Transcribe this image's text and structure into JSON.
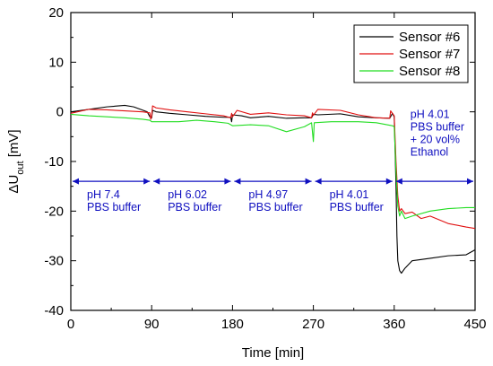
{
  "chart_data": {
    "type": "line",
    "xlabel": "Time [min]",
    "ylabel_main": "ΔU",
    "ylabel_sub": "out",
    "ylabel_unit": " [mV]",
    "xlim": [
      0,
      450
    ],
    "ylim": [
      -40,
      20
    ],
    "x_ticks": [
      0,
      90,
      180,
      270,
      360,
      450
    ],
    "x_tick_labels": [
      "0",
      "90",
      "180",
      "270",
      "360",
      "450"
    ],
    "y_ticks": [
      20,
      10,
      0,
      -10,
      -20,
      -30,
      -40
    ],
    "y_tick_labels": [
      "20",
      "10",
      "0",
      "-10",
      "-20",
      "-30",
      "-40"
    ],
    "grid": false,
    "legend_position": "top-right",
    "series": [
      {
        "name": "Sensor #6",
        "color": "#000000",
        "points": [
          [
            0,
            0
          ],
          [
            20,
            0.5
          ],
          [
            40,
            1
          ],
          [
            60,
            1.3
          ],
          [
            70,
            1
          ],
          [
            85,
            0
          ],
          [
            88,
            -1
          ],
          [
            90,
            -1.2
          ],
          [
            91,
            0.3
          ],
          [
            95,
            0
          ],
          [
            110,
            -0.3
          ],
          [
            130,
            -0.6
          ],
          [
            150,
            -0.9
          ],
          [
            170,
            -1.1
          ],
          [
            178,
            -1.1
          ],
          [
            179,
            -2
          ],
          [
            180,
            -0.6
          ],
          [
            190,
            -0.8
          ],
          [
            200,
            -1.2
          ],
          [
            220,
            -0.9
          ],
          [
            240,
            -1.3
          ],
          [
            260,
            -1.2
          ],
          [
            268,
            -1.2
          ],
          [
            270,
            -0.5
          ],
          [
            275,
            -0.6
          ],
          [
            300,
            -0.4
          ],
          [
            320,
            -1
          ],
          [
            340,
            -1.2
          ],
          [
            355,
            -1.3
          ],
          [
            358,
            -0.3
          ],
          [
            360,
            -1
          ],
          [
            362,
            -15
          ],
          [
            363,
            -25
          ],
          [
            364,
            -30
          ],
          [
            366,
            -32
          ],
          [
            368,
            -32.5
          ],
          [
            372,
            -31.5
          ],
          [
            380,
            -30
          ],
          [
            400,
            -29.5
          ],
          [
            420,
            -29
          ],
          [
            440,
            -28.8
          ],
          [
            450,
            -27.8
          ]
        ]
      },
      {
        "name": "Sensor #7",
        "color": "#e01010",
        "points": [
          [
            0,
            -0.3
          ],
          [
            20,
            0.5
          ],
          [
            40,
            0.4
          ],
          [
            60,
            0.2
          ],
          [
            80,
            0
          ],
          [
            88,
            -0.2
          ],
          [
            89,
            -1.5
          ],
          [
            90,
            -0.8
          ],
          [
            91,
            1.2
          ],
          [
            95,
            0.8
          ],
          [
            110,
            0.4
          ],
          [
            130,
            0
          ],
          [
            150,
            -0.4
          ],
          [
            170,
            -0.8
          ],
          [
            178,
            -1.2
          ],
          [
            179,
            -0.3
          ],
          [
            180,
            -1
          ],
          [
            185,
            0.3
          ],
          [
            200,
            -0.5
          ],
          [
            220,
            -0.2
          ],
          [
            240,
            -0.6
          ],
          [
            260,
            -0.8
          ],
          [
            268,
            -1.2
          ],
          [
            269,
            -0.2
          ],
          [
            270,
            -0.7
          ],
          [
            275,
            0.5
          ],
          [
            300,
            0.3
          ],
          [
            320,
            -0.6
          ],
          [
            340,
            -1.2
          ],
          [
            355,
            -1.3
          ],
          [
            356,
            0.2
          ],
          [
            360,
            -0.8
          ],
          [
            362,
            -10
          ],
          [
            364,
            -17
          ],
          [
            366,
            -20
          ],
          [
            368,
            -19.5
          ],
          [
            372,
            -20.5
          ],
          [
            380,
            -20.2
          ],
          [
            390,
            -21.5
          ],
          [
            400,
            -21
          ],
          [
            420,
            -22.5
          ],
          [
            440,
            -23.2
          ],
          [
            450,
            -23.5
          ]
        ]
      },
      {
        "name": "Sensor #8",
        "color": "#22dd22",
        "points": [
          [
            0,
            -0.5
          ],
          [
            20,
            -0.8
          ],
          [
            40,
            -1
          ],
          [
            60,
            -1.2
          ],
          [
            80,
            -1.5
          ],
          [
            88,
            -1.7
          ],
          [
            90,
            -2
          ],
          [
            100,
            -2
          ],
          [
            120,
            -2
          ],
          [
            140,
            -1.7
          ],
          [
            160,
            -2
          ],
          [
            175,
            -2.3
          ],
          [
            180,
            -2.8
          ],
          [
            200,
            -2.6
          ],
          [
            220,
            -2.8
          ],
          [
            240,
            -4
          ],
          [
            260,
            -3
          ],
          [
            268,
            -2.2
          ],
          [
            270,
            -6
          ],
          [
            271,
            -2.2
          ],
          [
            290,
            -2
          ],
          [
            320,
            -2
          ],
          [
            340,
            -2.2
          ],
          [
            358,
            -2.8
          ],
          [
            360,
            -3
          ],
          [
            362,
            -12
          ],
          [
            364,
            -19
          ],
          [
            366,
            -21
          ],
          [
            368,
            -20
          ],
          [
            372,
            -21.5
          ],
          [
            380,
            -21
          ],
          [
            400,
            -20
          ],
          [
            420,
            -19.5
          ],
          [
            440,
            -19.3
          ],
          [
            450,
            -19.3
          ]
        ]
      }
    ],
    "annotations": [
      {
        "lines": [
          "pH 7.4",
          "PBS buffer"
        ],
        "x_start": 0,
        "x_end": 90
      },
      {
        "lines": [
          "pH 6.02",
          "PBS buffer"
        ],
        "x_start": 90,
        "x_end": 180
      },
      {
        "lines": [
          "pH 4.97",
          "PBS buffer"
        ],
        "x_start": 180,
        "x_end": 270
      },
      {
        "lines": [
          "pH 4.01",
          "PBS buffer"
        ],
        "x_start": 270,
        "x_end": 360
      },
      {
        "lines": [
          "pH 4.01",
          "PBS buffer",
          "+ 20 vol%",
          "Ethanol"
        ],
        "x_start": 360,
        "x_end": 450
      }
    ],
    "annotation_arrow_y": -14,
    "annotation_color": "#1010c0"
  }
}
